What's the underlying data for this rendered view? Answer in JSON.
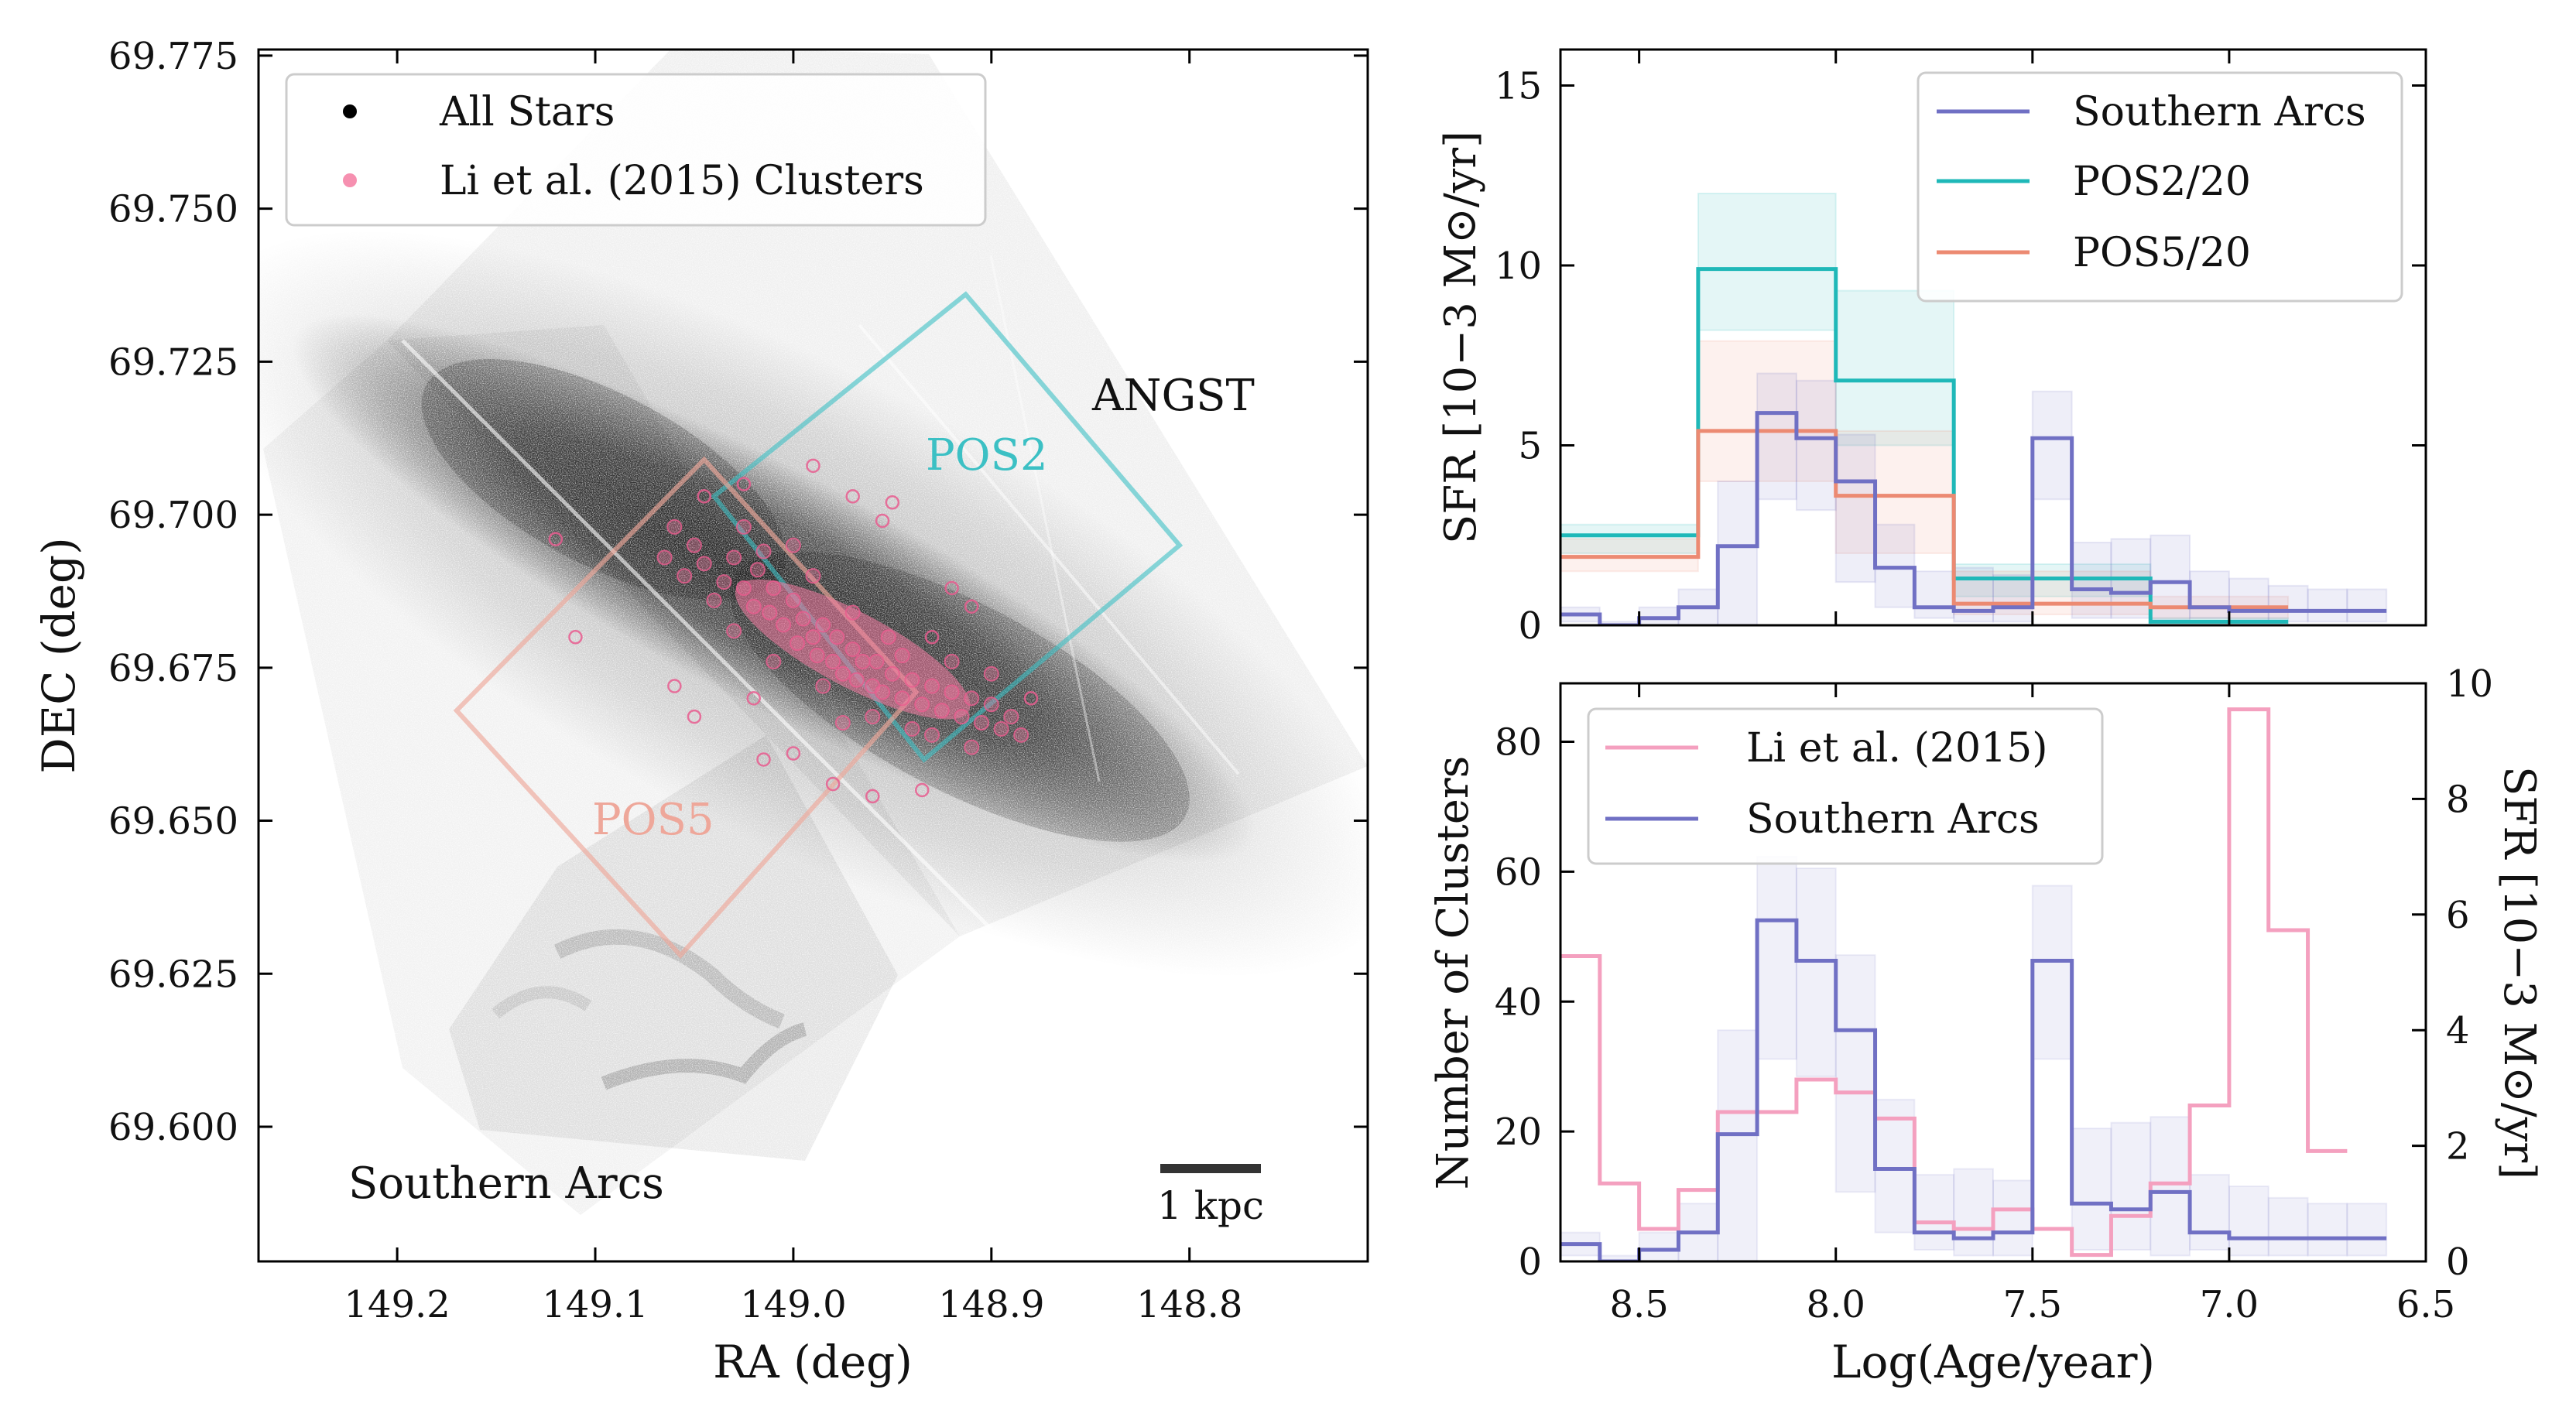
{
  "chart_data": [
    {
      "type": "scatter",
      "xlabel": "RA (deg)",
      "ylabel": "DEC (deg)",
      "xlim": [
        149.27,
        148.71
      ],
      "ylim": [
        69.578,
        69.776
      ],
      "xticks": [
        149.2,
        149.1,
        149.0,
        148.9,
        148.8
      ],
      "xtick_labels": [
        "149.2",
        "149.1",
        "149.0",
        "148.9",
        "148.8"
      ],
      "yticks": [
        69.6,
        69.625,
        69.65,
        69.675,
        69.7,
        69.725,
        69.75,
        69.775
      ],
      "ytick_labels": [
        "69.600",
        "69.625",
        "69.650",
        "69.675",
        "69.700",
        "69.725",
        "69.750",
        "69.775"
      ],
      "legend_position": "top-left",
      "legend": [
        "All Stars",
        "Li et al. (2015) Clusters"
      ],
      "colors": {
        "stars": "#000000",
        "clusters": "#f47ca2",
        "pos2": "#3cc0c4",
        "pos5": "#eea79a"
      },
      "annotations": [
        {
          "text": "ANGST",
          "ra": 148.8,
          "dec": 69.719
        },
        {
          "text": "POS2",
          "ra": 148.89,
          "dec": 69.709
        },
        {
          "text": "POS5",
          "ra": 149.06,
          "dec": 69.651
        },
        {
          "text": "Southern Arcs",
          "ra": 149.16,
          "dec": 69.591
        }
      ],
      "scalebar_label": "1 kpc",
      "pos2_region": [
        [
          148.913,
          69.736
        ],
        [
          148.805,
          69.695
        ],
        [
          148.934,
          69.66
        ],
        [
          149.04,
          69.703
        ]
      ],
      "pos5_region": [
        [
          149.045,
          69.709
        ],
        [
          148.938,
          69.671
        ],
        [
          149.057,
          69.628
        ],
        [
          149.17,
          69.668
        ]
      ],
      "stellar_disk": {
        "center": [
          148.97,
          69.678
        ],
        "axis_end": [
          148.78,
          69.652
        ],
        "axis_start": [
          149.12,
          69.707
        ]
      },
      "clusters_core": [
        [
          149.04,
          69.686
        ],
        [
          149.035,
          69.689
        ],
        [
          149.03,
          69.693
        ],
        [
          149.025,
          69.688
        ],
        [
          149.02,
          69.685
        ],
        [
          149.018,
          69.691
        ],
        [
          149.012,
          69.684
        ],
        [
          149.01,
          69.688
        ],
        [
          149.005,
          69.682
        ],
        [
          149.0,
          69.686
        ],
        [
          148.998,
          69.679
        ],
        [
          148.995,
          69.683
        ],
        [
          148.99,
          69.68
        ],
        [
          148.988,
          69.677
        ],
        [
          148.985,
          69.682
        ],
        [
          148.98,
          69.676
        ],
        [
          148.978,
          69.68
        ],
        [
          148.975,
          69.674
        ],
        [
          148.97,
          69.678
        ],
        [
          148.968,
          69.673
        ],
        [
          148.965,
          69.676
        ],
        [
          148.96,
          69.672
        ],
        [
          148.958,
          69.676
        ],
        [
          148.955,
          69.671
        ],
        [
          148.95,
          69.674
        ],
        [
          148.945,
          69.67
        ],
        [
          148.94,
          69.673
        ],
        [
          148.935,
          69.669
        ],
        [
          148.93,
          69.672
        ],
        [
          148.925,
          69.668
        ],
        [
          148.92,
          69.671
        ],
        [
          148.915,
          69.667
        ],
        [
          148.91,
          69.67
        ],
        [
          148.905,
          69.666
        ],
        [
          148.9,
          69.669
        ],
        [
          148.895,
          69.665
        ],
        [
          148.89,
          69.667
        ],
        [
          148.885,
          69.664
        ],
        [
          149.045,
          69.692
        ],
        [
          149.05,
          69.695
        ],
        [
          149.055,
          69.69
        ],
        [
          149.06,
          69.698
        ],
        [
          149.065,
          69.693
        ],
        [
          149.03,
          69.681
        ],
        [
          149.015,
          69.694
        ],
        [
          148.99,
          69.69
        ],
        [
          148.985,
          69.672
        ],
        [
          148.96,
          69.667
        ],
        [
          148.97,
          69.684
        ],
        [
          148.952,
          69.68
        ],
        [
          148.94,
          69.665
        ],
        [
          148.92,
          69.676
        ],
        [
          149.0,
          69.695
        ],
        [
          149.01,
          69.676
        ],
        [
          149.025,
          69.698
        ],
        [
          148.975,
          69.666
        ],
        [
          148.945,
          69.677
        ],
        [
          148.93,
          69.664
        ],
        [
          148.9,
          69.674
        ],
        [
          148.91,
          69.662
        ]
      ],
      "clusters_outliers": [
        [
          149.12,
          69.696
        ],
        [
          149.11,
          69.68
        ],
        [
          149.05,
          69.667
        ],
        [
          149.0,
          69.661
        ],
        [
          148.96,
          69.654
        ],
        [
          148.98,
          69.656
        ],
        [
          148.92,
          69.688
        ],
        [
          148.91,
          69.685
        ],
        [
          148.97,
          69.703
        ],
        [
          148.95,
          69.702
        ],
        [
          149.02,
          69.67
        ],
        [
          149.045,
          69.703
        ],
        [
          148.93,
          69.68
        ],
        [
          149.015,
          69.66
        ],
        [
          149.06,
          69.672
        ],
        [
          148.935,
          69.655
        ],
        [
          149.025,
          69.705
        ],
        [
          148.99,
          69.708
        ],
        [
          148.955,
          69.699
        ],
        [
          148.88,
          69.67
        ]
      ]
    },
    {
      "type": "line",
      "step": true,
      "xlabel": "",
      "ylabel": "SFR [10−3 M⊙/yr]",
      "xlim": [
        8.7,
        6.5
      ],
      "ylim": [
        0,
        16
      ],
      "xticks": [
        8.5,
        8.0,
        7.5,
        7.0,
        6.5
      ],
      "yticks": [
        0,
        5,
        10,
        15
      ],
      "ytick_labels": [
        "0",
        "5",
        "10",
        "15"
      ],
      "legend_position": "top-right",
      "series": [
        {
          "name": "Southern Arcs",
          "color": "#7070c4",
          "edges": [
            8.7,
            8.6,
            8.5,
            8.4,
            8.3,
            8.2,
            8.1,
            8.0,
            7.9,
            7.8,
            7.7,
            7.6,
            7.5,
            7.4,
            7.3,
            7.2,
            7.1,
            7.0,
            6.9,
            6.8,
            6.7,
            6.6
          ],
          "values": [
            0.3,
            0.0,
            0.2,
            0.5,
            2.2,
            5.9,
            5.2,
            4.0,
            1.6,
            0.5,
            0.4,
            0.5,
            5.2,
            1.0,
            0.9,
            1.2,
            0.5,
            0.4,
            0.4,
            0.4,
            0.4
          ],
          "lower": [
            0.1,
            0.0,
            0.0,
            0.0,
            0.0,
            3.5,
            3.2,
            1.2,
            0.5,
            0.2,
            0.1,
            0.1,
            3.5,
            0.2,
            0.2,
            0.1,
            0.2,
            0.1,
            0.1,
            0.1,
            0.1
          ],
          "upper": [
            0.5,
            0.1,
            0.5,
            1.0,
            4.0,
            7.0,
            6.8,
            5.3,
            2.8,
            1.5,
            1.6,
            1.4,
            6.5,
            2.3,
            2.4,
            2.5,
            1.5,
            1.3,
            1.1,
            1.0,
            1.0
          ]
        },
        {
          "name": "POS2/20",
          "color": "#1fb8b8",
          "edges": [
            8.7,
            8.35,
            8.0,
            7.7,
            7.2,
            6.85
          ],
          "values": [
            2.5,
            9.9,
            6.8,
            1.3,
            0.1
          ],
          "lower": [
            2.0,
            8.2,
            5.0,
            0.8,
            0.0
          ],
          "upper": [
            2.8,
            12.0,
            9.3,
            1.7,
            0.2
          ]
        },
        {
          "name": "POS5/20",
          "color": "#ec8a72",
          "edges": [
            8.7,
            8.35,
            8.0,
            7.7,
            7.2,
            6.85
          ],
          "values": [
            1.9,
            5.4,
            3.6,
            0.6,
            0.5
          ],
          "lower": [
            1.5,
            4.0,
            2.0,
            0.3,
            0.2
          ],
          "upper": [
            2.4,
            7.9,
            5.4,
            1.5,
            0.8
          ]
        }
      ]
    },
    {
      "type": "line",
      "step": true,
      "xlabel": "Log(Age/year)",
      "ylabel": "Number of Clusters",
      "ylabel_right": "SFR [10−3 M⊙/yr]",
      "xlim": [
        8.7,
        6.5
      ],
      "ylim": [
        0,
        89
      ],
      "ylim_right": [
        0,
        10
      ],
      "xticks": [
        8.5,
        8.0,
        7.5,
        7.0,
        6.5
      ],
      "xtick_labels": [
        "8.5",
        "8.0",
        "7.5",
        "7.0",
        "6.5"
      ],
      "yticks": [
        0,
        20,
        40,
        60,
        80
      ],
      "ytick_labels": [
        "0",
        "20",
        "40",
        "60",
        "80"
      ],
      "yticks_right": [
        0,
        2,
        4,
        6,
        8,
        10
      ],
      "ytick_labels_right": [
        "0",
        "2",
        "4",
        "6",
        "8",
        "10"
      ],
      "legend_position": "top-left",
      "series": [
        {
          "name": "Li et al. (2015)",
          "color": "#f4a0bf",
          "axis": "left",
          "edges": [
            8.7,
            8.6,
            8.5,
            8.4,
            8.3,
            8.2,
            8.1,
            8.0,
            7.9,
            7.8,
            7.7,
            7.6,
            7.5,
            7.4,
            7.3,
            7.2,
            7.1,
            7.0,
            6.9,
            6.8,
            6.7
          ],
          "values": [
            47,
            12,
            5,
            11,
            23,
            23,
            28,
            26,
            22,
            6,
            5,
            8,
            5,
            1,
            7,
            12,
            24,
            85,
            51,
            17
          ]
        },
        {
          "name": "Southern Arcs",
          "color": "#7070c4",
          "axis": "right",
          "edges": [
            8.7,
            8.6,
            8.5,
            8.4,
            8.3,
            8.2,
            8.1,
            8.0,
            7.9,
            7.8,
            7.7,
            7.6,
            7.5,
            7.4,
            7.3,
            7.2,
            7.1,
            7.0,
            6.9,
            6.8,
            6.7,
            6.6
          ],
          "values": [
            0.3,
            0.0,
            0.2,
            0.5,
            2.2,
            5.9,
            5.2,
            4.0,
            1.6,
            0.5,
            0.4,
            0.5,
            5.2,
            1.0,
            0.9,
            1.2,
            0.5,
            0.4,
            0.4,
            0.4,
            0.4
          ],
          "lower": [
            0.1,
            0.0,
            0.0,
            0.0,
            0.0,
            3.5,
            3.2,
            1.2,
            0.5,
            0.2,
            0.1,
            0.1,
            3.5,
            0.2,
            0.2,
            0.1,
            0.2,
            0.1,
            0.1,
            0.1,
            0.1
          ],
          "upper": [
            0.5,
            0.1,
            0.5,
            1.0,
            4.0,
            7.0,
            6.8,
            5.3,
            2.8,
            1.5,
            1.6,
            1.4,
            6.5,
            2.3,
            2.4,
            2.5,
            1.5,
            1.3,
            1.1,
            1.0,
            1.0
          ]
        }
      ]
    }
  ]
}
